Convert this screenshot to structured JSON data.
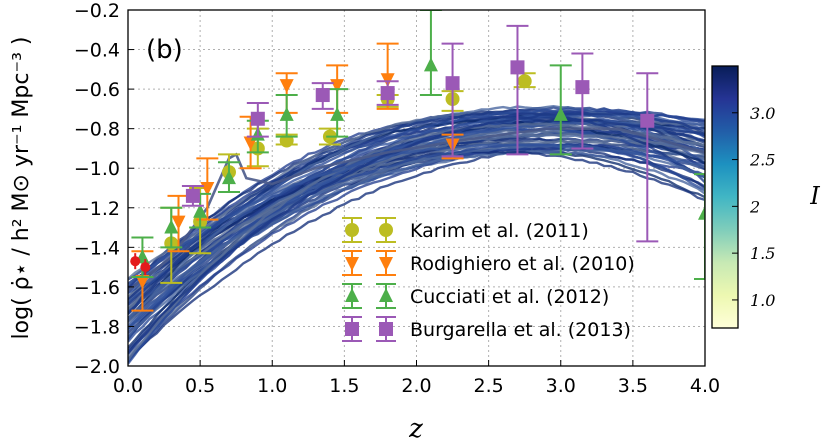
{
  "chart_data": {
    "type": "line",
    "panel_label": "(b)",
    "title": "",
    "xlabel": "z",
    "ylabel": "log( ρ̇⋆ / h² M⊙ yr⁻¹ Mpc⁻³ )",
    "xlim": [
      0.0,
      4.0
    ],
    "ylim": [
      -2.0,
      -0.2
    ],
    "x_ticks": [
      0.0,
      0.5,
      1.0,
      1.5,
      2.0,
      2.5,
      3.0,
      3.5,
      4.0
    ],
    "x_tick_labels": [
      "0.0",
      "0.5",
      "1.0",
      "1.5",
      "2.0",
      "2.5",
      "3.0",
      "3.5",
      "4.0"
    ],
    "y_ticks": [
      -2.0,
      -1.8,
      -1.6,
      -1.4,
      -1.2,
      -1.0,
      -0.8,
      -0.6,
      -0.4,
      -0.2
    ],
    "y_tick_labels": [
      "−2.0",
      "−1.8",
      "−1.6",
      "−1.4",
      "−1.2",
      "−1.0",
      "−0.8",
      "−0.6",
      "−0.4",
      "−0.2"
    ],
    "grid": true,
    "legend_position": "lower-right",
    "model_curves": {
      "description_color_by": "I",
      "count": 60,
      "peak_z": 2.9,
      "peak_value_range": [
        -0.92,
        -0.68
      ],
      "z0_value_range": [
        -2.0,
        -1.55
      ]
    },
    "colorbar": {
      "label": "I",
      "range": [
        0.7,
        3.5
      ],
      "ticks": [
        1.0,
        1.5,
        2.0,
        2.5,
        3.0
      ],
      "tick_labels": [
        "1.0",
        "1.5",
        "2",
        "2.5",
        "3.0"
      ],
      "stops": [
        "#ffffd9",
        "#edf8b1",
        "#c7e9b4",
        "#7fcdbb",
        "#41b6c4",
        "#1d91c0",
        "#225ea8",
        "#253494",
        "#081d58"
      ]
    },
    "series": [
      {
        "name": "Karim et al. (2011)",
        "marker": "circle",
        "color": "#bcbd22",
        "points": [
          {
            "x": 0.3,
            "y": -1.38,
            "lo": -1.58,
            "hi": -1.2
          },
          {
            "x": 0.5,
            "y": -1.27,
            "lo": -1.43,
            "hi": -1.1
          },
          {
            "x": 0.7,
            "y": -1.02,
            "lo": -1.12,
            "hi": -0.93
          },
          {
            "x": 0.9,
            "y": -0.9,
            "lo": -0.99,
            "hi": -0.8
          },
          {
            "x": 1.1,
            "y": -0.86,
            "lo": -0.88,
            "hi": -0.83
          },
          {
            "x": 1.4,
            "y": -0.84,
            "lo": -0.88,
            "hi": -0.8
          },
          {
            "x": 1.8,
            "y": -0.65,
            "lo": -0.69,
            "hi": -0.63
          },
          {
            "x": 2.25,
            "y": -0.65,
            "lo": -0.71,
            "hi": -0.61
          },
          {
            "x": 2.75,
            "y": -0.56,
            "lo": -0.59,
            "hi": -0.52
          }
        ]
      },
      {
        "name": "Rodighiero et al. (2010)",
        "marker": "triangle-down",
        "color": "#ff7f0e",
        "points": [
          {
            "x": 0.1,
            "y": -1.57,
            "lo": -1.72,
            "hi": -1.42
          },
          {
            "x": 0.35,
            "y": -1.27,
            "lo": -1.42,
            "hi": -1.14
          },
          {
            "x": 0.55,
            "y": -1.1,
            "lo": -1.26,
            "hi": -0.95
          },
          {
            "x": 0.85,
            "y": -0.87,
            "lo": -1.0,
            "hi": -0.74
          },
          {
            "x": 1.1,
            "y": -0.58,
            "lo": -0.72,
            "hi": -0.52
          },
          {
            "x": 1.45,
            "y": -0.58,
            "lo": -0.72,
            "hi": -0.48
          },
          {
            "x": 1.8,
            "y": -0.55,
            "lo": -0.7,
            "hi": -0.37
          },
          {
            "x": 2.25,
            "y": -0.88,
            "lo": -0.95,
            "hi": -0.83
          }
        ]
      },
      {
        "name": "Cucciati et al. (2012)",
        "marker": "triangle-up",
        "color": "#4daf4a",
        "points": [
          {
            "x": 0.1,
            "y": -1.45,
            "lo": -1.55,
            "hi": -1.35
          },
          {
            "x": 0.3,
            "y": -1.3,
            "lo": -1.4,
            "hi": -1.2
          },
          {
            "x": 0.5,
            "y": -1.22,
            "lo": -1.3,
            "hi": -1.13
          },
          {
            "x": 0.7,
            "y": -1.05,
            "lo": -1.12,
            "hi": -0.97
          },
          {
            "x": 0.9,
            "y": -0.83,
            "lo": -0.92,
            "hi": -0.76
          },
          {
            "x": 1.1,
            "y": -0.73,
            "lo": -0.84,
            "hi": -0.63
          },
          {
            "x": 1.45,
            "y": -0.73,
            "lo": -0.84,
            "hi": -0.6
          },
          {
            "x": 2.1,
            "y": -0.48,
            "lo": -0.63,
            "hi": -0.2
          },
          {
            "x": 3.0,
            "y": -0.73,
            "lo": -0.93,
            "hi": -0.48
          },
          {
            "x": 4.0,
            "y": -1.23,
            "lo": -1.56,
            "hi": -1.03
          }
        ]
      },
      {
        "name": "Burgarella et al. (2013)",
        "marker": "square",
        "color": "#9b59b6",
        "points": [
          {
            "x": 0.45,
            "y": -1.14,
            "lo": -1.19,
            "hi": -1.09
          },
          {
            "x": 0.9,
            "y": -0.75,
            "lo": -0.84,
            "hi": -0.67
          },
          {
            "x": 1.35,
            "y": -0.63,
            "lo": -0.7,
            "hi": -0.57
          },
          {
            "x": 1.8,
            "y": -0.62,
            "lo": -0.68,
            "hi": -0.56
          },
          {
            "x": 2.25,
            "y": -0.57,
            "lo": -0.94,
            "hi": -0.37
          },
          {
            "x": 2.7,
            "y": -0.49,
            "lo": -0.93,
            "hi": -0.28
          },
          {
            "x": 3.15,
            "y": -0.59,
            "lo": -0.9,
            "hi": -0.42
          },
          {
            "x": 3.6,
            "y": -0.76,
            "lo": -1.37,
            "hi": -0.52
          }
        ]
      }
    ],
    "red_points": [
      {
        "x": 0.05,
        "y": -1.47
      },
      {
        "x": 0.12,
        "y": -1.5
      }
    ]
  }
}
